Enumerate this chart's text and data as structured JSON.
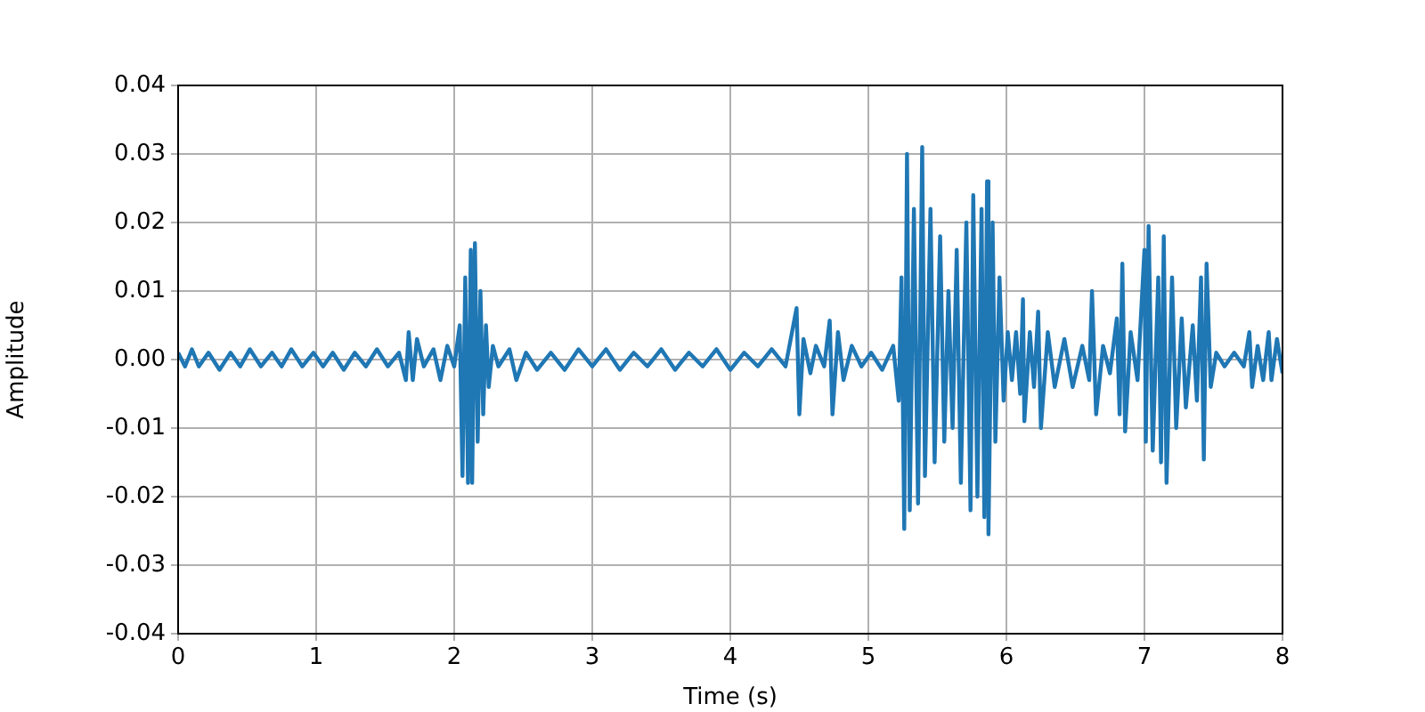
{
  "chart_data": {
    "type": "line",
    "xlabel": "Time (s)",
    "ylabel": "Amplitude",
    "xlim": [
      0,
      8
    ],
    "xticks": [
      0,
      1,
      2,
      3,
      4,
      5,
      6,
      7,
      8
    ],
    "ylim": [
      -0.04,
      0.04
    ],
    "yticks": [
      -0.04,
      -0.03,
      -0.02,
      -0.01,
      {
        "value": 0,
        "label": "0.00"
      },
      0.01,
      0.02,
      0.03,
      0.04
    ],
    "grid": true,
    "marker": "none",
    "line_style": "solid",
    "series": [
      {
        "color": "#1f77b4",
        "x": [
          0.0,
          0.05,
          0.1,
          0.15,
          0.22,
          0.3,
          0.38,
          0.45,
          0.52,
          0.6,
          0.68,
          0.75,
          0.82,
          0.9,
          0.98,
          1.05,
          1.12,
          1.2,
          1.28,
          1.36,
          1.44,
          1.52,
          1.6,
          1.65,
          1.67,
          1.7,
          1.73,
          1.78,
          1.85,
          1.9,
          1.95,
          2.0,
          2.04,
          2.06,
          2.08,
          2.1,
          2.12,
          2.13,
          2.15,
          2.17,
          2.19,
          2.21,
          2.23,
          2.25,
          2.28,
          2.32,
          2.4,
          2.45,
          2.52,
          2.6,
          2.7,
          2.8,
          2.9,
          3.0,
          3.1,
          3.2,
          3.3,
          3.4,
          3.5,
          3.6,
          3.7,
          3.8,
          3.9,
          4.0,
          4.1,
          4.2,
          4.3,
          4.4,
          4.48,
          4.5,
          4.53,
          4.58,
          4.62,
          4.68,
          4.72,
          4.74,
          4.78,
          4.82,
          4.88,
          4.95,
          5.02,
          5.1,
          5.18,
          5.22,
          5.24,
          5.26,
          5.28,
          5.3,
          5.33,
          5.36,
          5.39,
          5.41,
          5.45,
          5.48,
          5.52,
          5.55,
          5.58,
          5.61,
          5.64,
          5.67,
          5.71,
          5.74,
          5.76,
          5.79,
          5.82,
          5.84,
          5.86,
          5.87,
          5.9,
          5.92,
          5.95,
          5.98,
          6.01,
          6.04,
          6.07,
          6.1,
          6.12,
          6.13,
          6.17,
          6.2,
          6.23,
          6.25,
          6.3,
          6.35,
          6.42,
          6.48,
          6.55,
          6.6,
          6.62,
          6.65,
          6.7,
          6.75,
          6.8,
          6.82,
          6.84,
          6.86,
          6.9,
          6.95,
          7.0,
          7.01,
          7.03,
          7.06,
          7.1,
          7.12,
          7.14,
          7.16,
          7.2,
          7.23,
          7.27,
          7.3,
          7.35,
          7.38,
          7.41,
          7.43,
          7.45,
          7.48,
          7.52,
          7.58,
          7.65,
          7.72,
          7.76,
          7.78,
          7.82,
          7.86,
          7.9,
          7.92,
          7.96,
          8.0
        ],
        "values": [
          0.001,
          -0.001,
          0.0015,
          -0.001,
          0.001,
          -0.0015,
          0.001,
          -0.001,
          0.0015,
          -0.001,
          0.001,
          -0.001,
          0.0015,
          -0.001,
          0.001,
          -0.001,
          0.001,
          -0.0015,
          0.001,
          -0.001,
          0.0015,
          -0.001,
          0.001,
          -0.003,
          0.004,
          -0.003,
          0.003,
          -0.001,
          0.0015,
          -0.003,
          0.002,
          -0.001,
          0.005,
          -0.017,
          0.012,
          -0.018,
          0.016,
          -0.018,
          0.017,
          -0.012,
          0.01,
          -0.008,
          0.005,
          -0.004,
          0.002,
          -0.001,
          0.0015,
          -0.003,
          0.001,
          -0.0015,
          0.001,
          -0.0015,
          0.0015,
          -0.001,
          0.0015,
          -0.0015,
          0.001,
          -0.001,
          0.0015,
          -0.0015,
          0.001,
          -0.001,
          0.0015,
          -0.0015,
          0.001,
          -0.001,
          0.0015,
          -0.001,
          0.0075,
          -0.008,
          0.003,
          -0.002,
          0.002,
          -0.001,
          0.0057,
          -0.008,
          0.004,
          -0.003,
          0.002,
          -0.001,
          0.001,
          -0.0015,
          0.002,
          -0.006,
          0.012,
          -0.0247,
          0.03,
          -0.022,
          0.022,
          -0.021,
          0.031,
          -0.017,
          0.022,
          -0.015,
          0.018,
          -0.012,
          0.01,
          -0.01,
          0.016,
          -0.018,
          0.02,
          -0.022,
          0.024,
          -0.02,
          0.022,
          -0.023,
          0.026,
          -0.0255,
          0.02,
          -0.012,
          0.012,
          -0.006,
          0.004,
          -0.003,
          0.004,
          -0.005,
          0.0088,
          -0.009,
          0.004,
          -0.004,
          0.007,
          -0.01,
          0.004,
          -0.004,
          0.003,
          -0.004,
          0.002,
          -0.003,
          0.01,
          -0.008,
          0.002,
          -0.002,
          0.006,
          -0.008,
          0.014,
          -0.0105,
          0.004,
          -0.003,
          0.016,
          -0.012,
          0.0195,
          -0.0133,
          0.012,
          -0.015,
          0.018,
          -0.018,
          0.012,
          -0.01,
          0.006,
          -0.007,
          0.005,
          -0.006,
          0.012,
          -0.0146,
          0.014,
          -0.004,
          0.001,
          -0.001,
          0.001,
          -0.001,
          0.004,
          -0.004,
          0.002,
          -0.003,
          0.004,
          -0.003,
          0.003,
          -0.002
        ]
      }
    ]
  }
}
